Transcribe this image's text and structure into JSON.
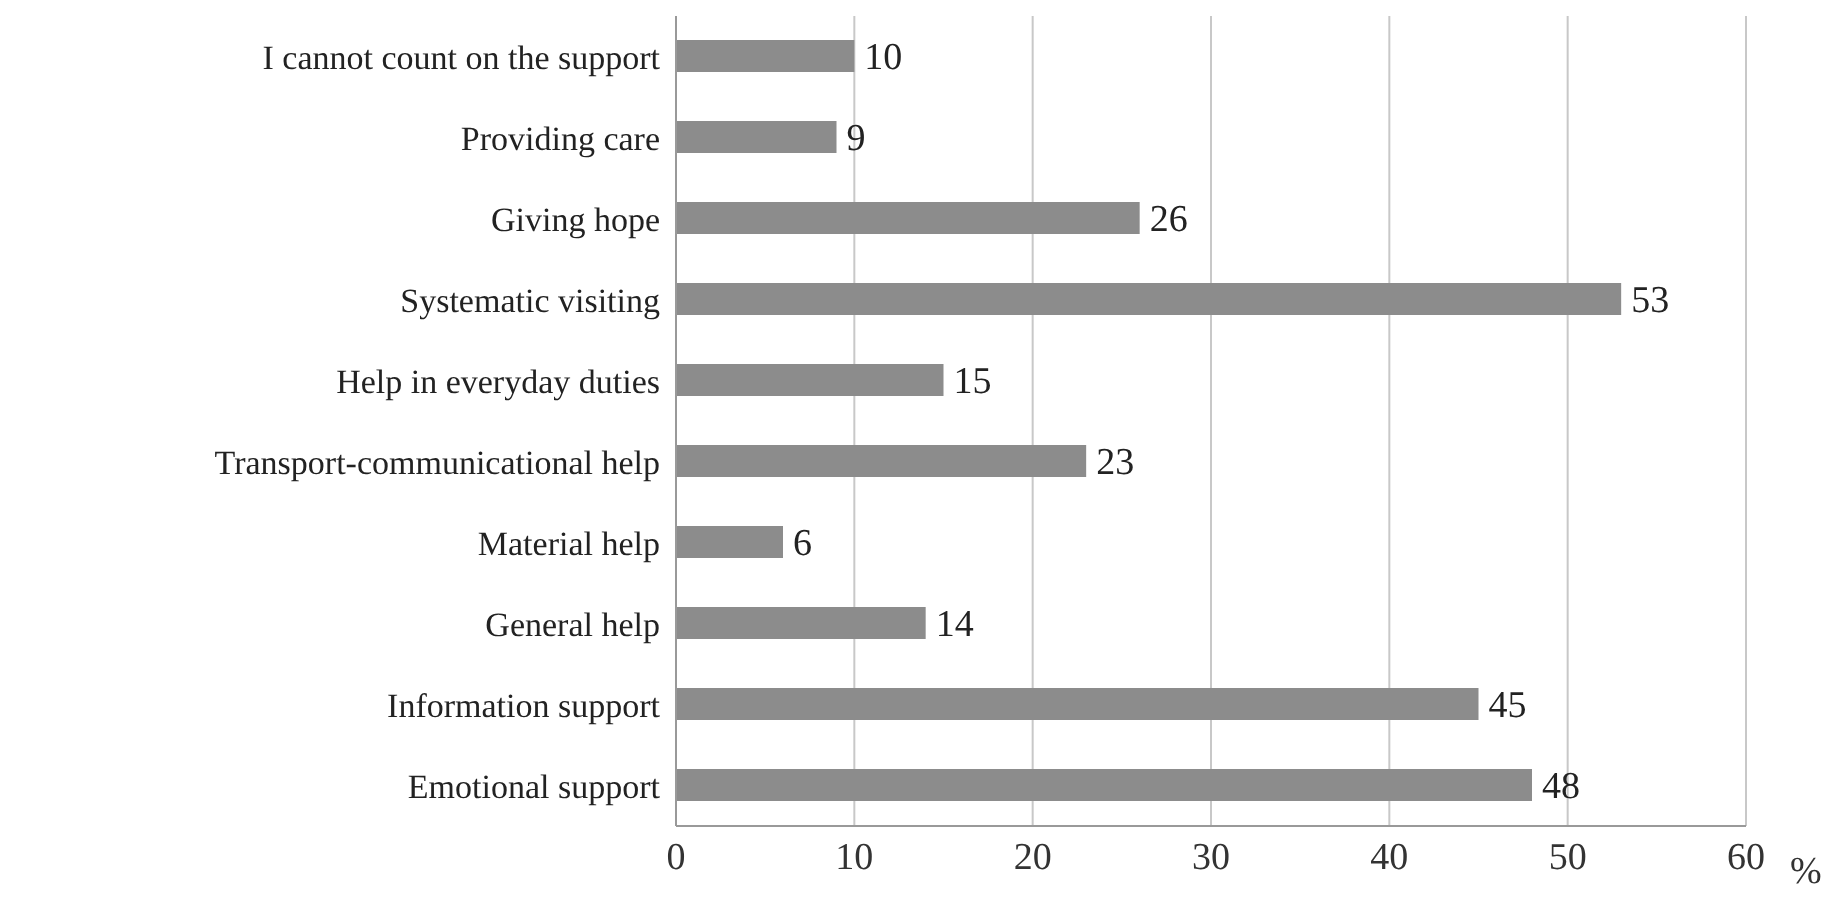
{
  "chart_data": {
    "type": "bar",
    "orientation": "horizontal",
    "xlabel": "%",
    "categories": [
      "I cannot count on the support",
      "Providing care",
      "Giving hope",
      "Systematic visiting",
      "Help in everyday duties",
      "Transport-communicational help",
      "Material help",
      "General help",
      "Information support",
      "Emotional support"
    ],
    "values": [
      10,
      9,
      26,
      53,
      15,
      23,
      6,
      14,
      45,
      48
    ],
    "color": "#8c8c8c",
    "xlim": [
      0,
      60
    ],
    "xticks": [
      0,
      10,
      20,
      30,
      40,
      50,
      60
    ],
    "grid": "x",
    "data_labels": true,
    "legend": false
  }
}
